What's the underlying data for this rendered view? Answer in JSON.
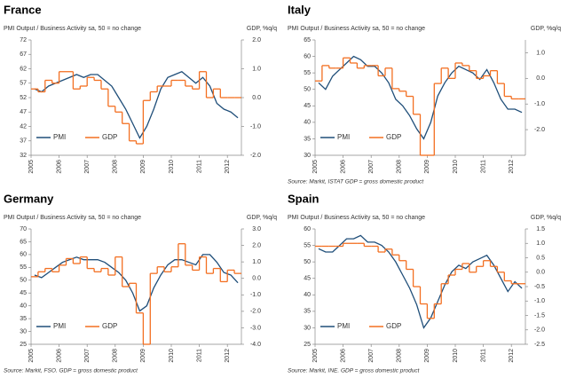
{
  "chart_data": [
    {
      "type": "line",
      "title": "France",
      "subtitle": "PMI Output / Business Activity sa, 50 = no change",
      "y2_label": "GDP, %q/q",
      "legend": "lower left",
      "grid": false,
      "categories": [
        "2005",
        null,
        null,
        null,
        "2006",
        null,
        null,
        null,
        "2007",
        null,
        null,
        null,
        "2008",
        null,
        null,
        null,
        "2009",
        null,
        null,
        null,
        "2010",
        null,
        null,
        null,
        "2011",
        null,
        null,
        null,
        "2012",
        null
      ],
      "ylim": [
        32,
        72
      ],
      "yticks": [
        32,
        37,
        42,
        47,
        52,
        57,
        62,
        67,
        72
      ],
      "y2lim": [
        -2,
        2
      ],
      "y2ticks": [
        {
          "value": -2,
          "label": "-2.0"
        },
        {
          "value": -1,
          "label": "-1.0"
        },
        {
          "value": 0,
          "label": "0.0"
        },
        {
          "value": 1,
          "label": "1.0"
        },
        {
          "value": 2,
          "label": "2.0"
        }
      ],
      "series": [
        {
          "name": "PMI",
          "color": "#1f4e79",
          "values": [
            55,
            54,
            56,
            57,
            58,
            59,
            60,
            59,
            60,
            60,
            58,
            56,
            52,
            48,
            43,
            38,
            42,
            48,
            55,
            59,
            60,
            61,
            59,
            57,
            59,
            56,
            50,
            48,
            47,
            45
          ]
        },
        {
          "name": "GDP",
          "color": "#f36f21",
          "axis": "y2",
          "step": true,
          "values": [
            0.3,
            0.2,
            0.6,
            0.5,
            0.9,
            0.9,
            0.3,
            0.4,
            0.7,
            0.6,
            0.3,
            -0.3,
            -0.5,
            -0.9,
            -1.5,
            -1.6,
            -0.1,
            0.2,
            0.4,
            0.4,
            0.6,
            0.6,
            0.4,
            0.3,
            0.9,
            0.0,
            0.3,
            0.0,
            0.0,
            0.0
          ]
        }
      ]
    },
    {
      "type": "line",
      "title": "Italy",
      "subtitle": "PMI Output / Business Activity sa, 50 = no change",
      "y2_label": "GDP, %q/q",
      "legend": "lower left",
      "grid": false,
      "source": "Source: Markit, ISTAT GDP = gross domestic product",
      "categories": [
        "2005",
        null,
        null,
        null,
        "2006",
        null,
        null,
        null,
        "2007",
        null,
        null,
        null,
        "2008",
        null,
        null,
        null,
        "2009",
        null,
        null,
        null,
        "2010",
        null,
        null,
        null,
        "2011",
        null,
        null,
        null,
        "2012",
        null
      ],
      "ylim": [
        30,
        65
      ],
      "yticks": [
        30,
        35,
        40,
        45,
        50,
        55,
        60,
        65
      ],
      "y2lim": [
        -3,
        1.5
      ],
      "y2ticks": [
        {
          "value": -2,
          "label": "-2.0"
        },
        {
          "value": -1,
          "label": "-1.0"
        },
        {
          "value": 0,
          "label": "0.0"
        },
        {
          "value": 1,
          "label": "1.0"
        }
      ],
      "series": [
        {
          "name": "PMI",
          "color": "#1f4e79",
          "values": [
            52,
            50,
            54,
            56,
            58,
            60,
            59,
            57,
            57,
            55,
            52,
            47,
            45,
            42,
            38,
            35,
            40,
            48,
            52,
            55,
            57,
            56,
            55,
            53,
            56,
            52,
            47,
            44,
            44,
            43
          ]
        },
        {
          "name": "GDP",
          "color": "#f36f21",
          "axis": "y2",
          "step": true,
          "values": [
            -0.1,
            0.5,
            0.4,
            0.4,
            0.8,
            0.6,
            0.4,
            0.5,
            0.5,
            0.1,
            0.4,
            -0.4,
            -0.5,
            -0.7,
            -1.4,
            -3.0,
            -3.0,
            -0.2,
            0.4,
            0.0,
            0.6,
            0.5,
            0.3,
            0.0,
            0.1,
            0.3,
            -0.2,
            -0.7,
            -0.8,
            -0.8
          ]
        }
      ]
    },
    {
      "type": "line",
      "title": "Germany",
      "subtitle": "PMI Output / Business Activity sa, 50 = no change",
      "y2_label": "GDP, %q/q",
      "legend": "lower left",
      "grid": false,
      "source": "Source: Markit, FSO. GDP = gross domestic product",
      "categories": [
        "2005",
        null,
        null,
        null,
        "2006",
        null,
        null,
        null,
        "2007",
        null,
        null,
        null,
        "2008",
        null,
        null,
        null,
        "2009",
        null,
        null,
        null,
        "2010",
        null,
        null,
        null,
        "2011",
        null,
        null,
        null,
        "2012",
        null
      ],
      "ylim": [
        25,
        70
      ],
      "yticks": [
        25,
        30,
        35,
        40,
        45,
        50,
        55,
        60,
        65,
        70
      ],
      "y2lim": [
        -4,
        3
      ],
      "y2ticks": [
        {
          "value": -4,
          "label": "-4.0"
        },
        {
          "value": -3,
          "label": "-3.0"
        },
        {
          "value": -2,
          "label": "-2.0"
        },
        {
          "value": -1,
          "label": "-1.0"
        },
        {
          "value": 0,
          "label": "0.0"
        },
        {
          "value": 1,
          "label": "1.0"
        },
        {
          "value": 2,
          "label": "2.0"
        },
        {
          "value": 3,
          "label": "3.0"
        }
      ],
      "series": [
        {
          "name": "PMI",
          "color": "#1f4e79",
          "values": [
            52,
            51,
            53,
            55,
            57,
            58,
            59,
            58,
            58,
            58,
            57,
            55,
            53,
            50,
            45,
            38,
            40,
            47,
            52,
            56,
            58,
            58,
            57,
            56,
            60,
            60,
            57,
            53,
            52,
            49
          ]
        },
        {
          "name": "GDP",
          "color": "#f36f21",
          "axis": "y2",
          "step": true,
          "values": [
            0.1,
            0.4,
            0.6,
            0.4,
            0.8,
            1.2,
            0.9,
            1.3,
            0.6,
            0.4,
            0.6,
            0.2,
            1.3,
            -0.5,
            -0.3,
            -2.1,
            -4.0,
            0.3,
            0.7,
            0.4,
            0.7,
            2.1,
            0.8,
            0.5,
            1.3,
            0.3,
            0.6,
            -0.2,
            0.5,
            0.3
          ]
        }
      ]
    },
    {
      "type": "line",
      "title": "Spain",
      "subtitle": "PMI Output / Business Activity sa, 50 = no change",
      "y2_label": "GDP, %q/q",
      "legend": "lower left",
      "grid": false,
      "source": "Source: Markit, INE. GDP = gross domestic product",
      "categories": [
        "2005",
        null,
        null,
        null,
        "2006",
        null,
        null,
        null,
        "2007",
        null,
        null,
        null,
        "2008",
        null,
        null,
        null,
        "2009",
        null,
        null,
        null,
        "2010",
        null,
        null,
        null,
        "2011",
        null,
        null,
        null,
        "2012",
        null
      ],
      "ylim": [
        25,
        60
      ],
      "yticks": [
        25,
        30,
        35,
        40,
        45,
        50,
        55,
        60
      ],
      "y2lim": [
        -2.5,
        1.5
      ],
      "y2ticks": [
        {
          "value": -2.5,
          "label": "-2.5"
        },
        {
          "value": -2,
          "label": "-2.0"
        },
        {
          "value": -1.5,
          "label": "-1.5"
        },
        {
          "value": -1,
          "label": "-1.0"
        },
        {
          "value": -0.5,
          "label": "-0.5"
        },
        {
          "value": 0,
          "label": "0.0"
        },
        {
          "value": 0.5,
          "label": "0.5"
        },
        {
          "value": 1,
          "label": "1.0"
        },
        {
          "value": 1.5,
          "label": "1.5"
        }
      ],
      "series": [
        {
          "name": "PMI",
          "color": "#1f4e79",
          "values": [
            54,
            53,
            53,
            55,
            57,
            57,
            58,
            56,
            56,
            55,
            53,
            50,
            46,
            42,
            37,
            30,
            33,
            38,
            43,
            47,
            49,
            48,
            50,
            51,
            52,
            49,
            45,
            41,
            44,
            42
          ]
        },
        {
          "name": "GDP",
          "color": "#f36f21",
          "axis": "y2",
          "step": true,
          "values": [
            0.9,
            0.9,
            0.9,
            0.9,
            1.0,
            1.0,
            1.0,
            0.9,
            0.9,
            0.7,
            0.8,
            0.6,
            0.4,
            0.1,
            -0.5,
            -1.1,
            -1.6,
            -1.1,
            -0.4,
            -0.1,
            0.1,
            0.3,
            0.0,
            0.2,
            0.4,
            0.2,
            0.0,
            -0.3,
            -0.4,
            -0.4
          ]
        }
      ]
    }
  ]
}
